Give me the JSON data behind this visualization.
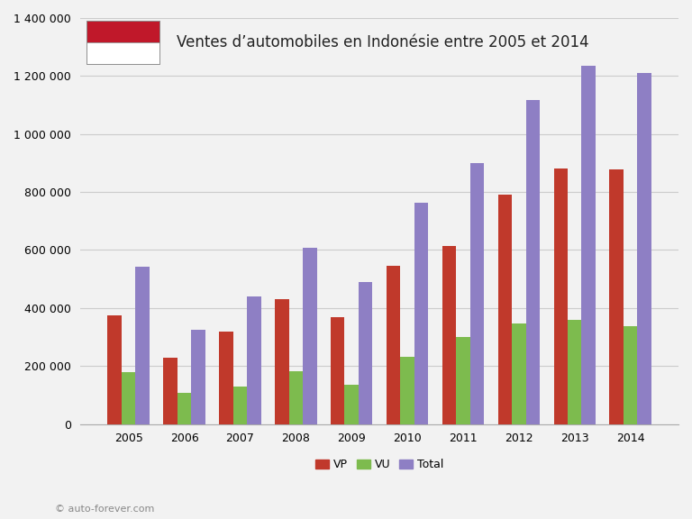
{
  "years": [
    2005,
    2006,
    2007,
    2008,
    2009,
    2010,
    2011,
    2012,
    2013,
    2014
  ],
  "VP": [
    375000,
    230000,
    320000,
    430000,
    370000,
    546000,
    614000,
    790000,
    880000,
    878000
  ],
  "VU": [
    180000,
    108000,
    130000,
    183000,
    135000,
    232000,
    300000,
    348000,
    360000,
    336000
  ],
  "Total": [
    543000,
    325000,
    440000,
    608000,
    490000,
    764000,
    900000,
    1116000,
    1235000,
    1210000
  ],
  "bar_width": 0.25,
  "VP_color": "#c0392b",
  "VU_color": "#7dbb4e",
  "Total_color": "#8e7fc4",
  "background_color": "#f2f2f2",
  "plot_bg_color": "#f2f2f2",
  "title": "Ventes d’automobiles en Indonésie entre 2005 et 2014",
  "ylim": [
    0,
    1400000
  ],
  "yticks": [
    0,
    200000,
    400000,
    600000,
    800000,
    1000000,
    1200000,
    1400000
  ],
  "legend_labels": [
    "VP",
    "VU",
    "Total"
  ],
  "copyright_text": "© auto-forever.com",
  "flag_red": "#c0182a",
  "flag_white": "#ffffff",
  "grid_color": "#cccccc",
  "spine_color": "#aaaaaa"
}
